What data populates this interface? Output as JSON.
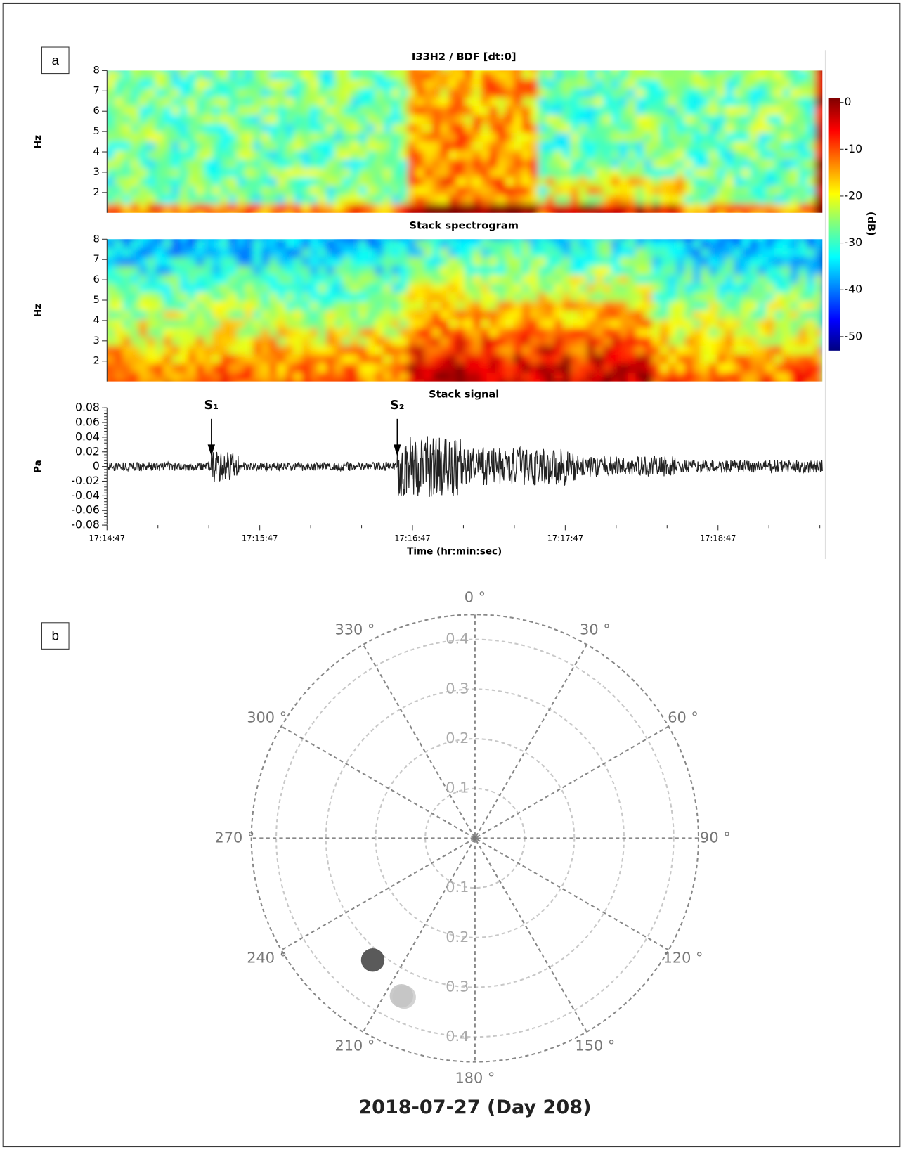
{
  "panel_labels": [
    "a",
    "b"
  ],
  "chart_data": [
    {
      "type": "spectrogram",
      "title": "I33H2 / BDF [dt:0]",
      "ylabel": "Hz",
      "ylim": [
        1,
        8
      ],
      "yticks": [
        2,
        3,
        4,
        5,
        6,
        7,
        8
      ],
      "colorbar": {
        "label": "(dB)",
        "clim": [
          -53,
          1
        ],
        "ticks": [
          0,
          -10,
          -20,
          -30,
          -40,
          -50
        ]
      }
    },
    {
      "type": "spectrogram",
      "title": "Stack spectrogram",
      "ylabel": "Hz",
      "ylim": [
        1,
        8
      ],
      "yticks": [
        2,
        3,
        4,
        5,
        6,
        7,
        8
      ]
    },
    {
      "type": "line",
      "title": "Stack signal",
      "ylabel": "Pa",
      "xlabel": "Time (hr:min:sec)",
      "xlim": [
        62087,
        62368
      ],
      "xticks": [
        {
          "value": 62087,
          "label": "17:14:47"
        },
        {
          "value": 62147,
          "label": "17:15:47"
        },
        {
          "value": 62207,
          "label": "17:16:47"
        },
        {
          "value": 62267,
          "label": "17:17:47"
        },
        {
          "value": 62327,
          "label": "17:18:47"
        }
      ],
      "xminorticks": [
        62107,
        62127,
        62167,
        62187,
        62227,
        62247,
        62287,
        62307,
        62347,
        62367
      ],
      "ylim": [
        -0.08,
        0.08
      ],
      "yticks": [
        0.08,
        0.06,
        0.04,
        0.02,
        0,
        -0.02,
        -0.04,
        -0.06,
        -0.08
      ],
      "annotations": [
        {
          "text": "S₁",
          "x": 62128
        },
        {
          "text": "S₂",
          "x": 62201
        }
      ]
    },
    {
      "type": "polar",
      "title": "2018-07-27 (Day 208)",
      "rlim": [
        0,
        0.45
      ],
      "rticks": [
        0.1,
        0.2,
        0.3,
        0.4
      ],
      "thetaticks": [
        {
          "value": 0,
          "label": "0 °"
        },
        {
          "value": 30,
          "label": "30 °"
        },
        {
          "value": 60,
          "label": "60 °"
        },
        {
          "value": 90,
          "label": "90 °"
        },
        {
          "value": 120,
          "label": "120 °"
        },
        {
          "value": 150,
          "label": "150 °"
        },
        {
          "value": 180,
          "label": "180 °"
        },
        {
          "value": 210,
          "label": "210 °"
        },
        {
          "value": 240,
          "label": "240 °"
        },
        {
          "value": 270,
          "label": "270 °"
        },
        {
          "value": 300,
          "label": "300 °"
        },
        {
          "value": 330,
          "label": "330 °"
        }
      ],
      "points": {
        "theta": [
          220,
          205,
          204
        ],
        "r": [
          0.32,
          0.35,
          0.35
        ],
        "colors": [
          "#5a5a5a",
          "#b8b8b8",
          "#c4c4c4"
        ]
      }
    }
  ]
}
